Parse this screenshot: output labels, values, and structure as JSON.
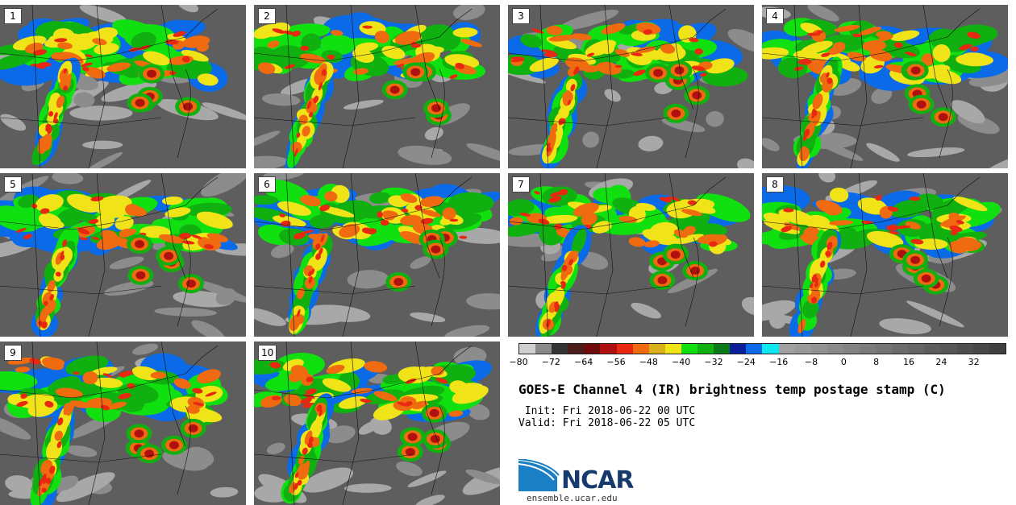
{
  "stamps": [
    {
      "label": "1"
    },
    {
      "label": "2"
    },
    {
      "label": "3"
    },
    {
      "label": "4"
    },
    {
      "label": "5"
    },
    {
      "label": "6"
    },
    {
      "label": "7"
    },
    {
      "label": "8"
    },
    {
      "label": "9"
    },
    {
      "label": "10"
    }
  ],
  "colorbar": {
    "tick_labels": [
      "−80",
      "−72",
      "−64",
      "−56",
      "−48",
      "−40",
      "−32",
      "−24",
      "−16",
      "−8",
      "0",
      "8",
      "16",
      "24",
      "32"
    ],
    "tick_values": [
      -80,
      -72,
      -64,
      -56,
      -48,
      -40,
      -32,
      -24,
      -16,
      -8,
      0,
      8,
      16,
      24,
      32
    ],
    "range": [
      -80,
      40
    ],
    "step": 4,
    "colors": [
      "#cfcfcf",
      "#8a8a8a",
      "#333333",
      "#4a1c1c",
      "#6e0a0a",
      "#b01010",
      "#e82810",
      "#f06a10",
      "#d8b018",
      "#f0e418",
      "#10e010",
      "#10b010",
      "#087a18",
      "#0a1e9a",
      "#0a6ae8",
      "#10e8f0",
      "#a0a0a0",
      "#999999",
      "#929292",
      "#8a8a8a",
      "#838383",
      "#7b7b7b",
      "#747474",
      "#6c6c6c",
      "#656565",
      "#5d5d5d",
      "#565656",
      "#4e4e4e",
      "#474747",
      "#3f3f3f"
    ]
  },
  "title": "GOES-E Channel 4 (IR) brightness temp postage stamp (C)",
  "init_text": " Init: Fri 2018-06-22 00 UTC",
  "valid_text": "Valid: Fri 2018-06-22 05 UTC",
  "logo_text": "NCAR",
  "website": "ensemble.ucar.edu"
}
